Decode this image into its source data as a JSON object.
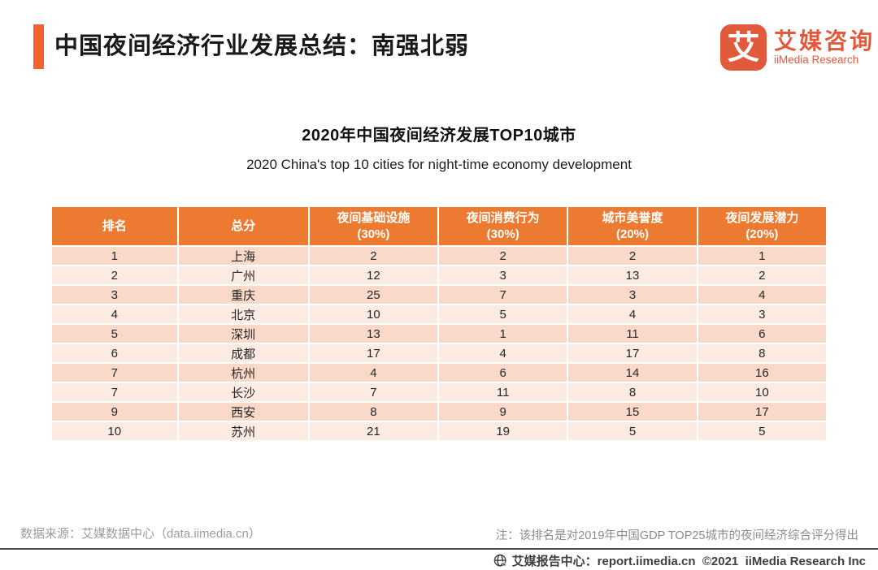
{
  "header": {
    "title": "中国夜间经济行业发展总结：南强北弱",
    "logo": {
      "glyph": "艾",
      "brand_cn": "艾媒咨询",
      "brand_en": "iiMedia Research"
    }
  },
  "chart_data": {
    "type": "table",
    "title": "2020年中国夜间经济发展TOP10城市",
    "subtitle": "2020 China's top 10 cities for night-time economy development",
    "columns": [
      "排名",
      "总分",
      "夜间基础设施\n(30%)",
      "夜间消费行为\n(30%)",
      "城市美誉度\n(20%)",
      "夜间发展潜力\n(20%)"
    ],
    "rows": [
      [
        "1",
        "上海",
        "2",
        "2",
        "2",
        "1"
      ],
      [
        "2",
        "广州",
        "12",
        "3",
        "13",
        "2"
      ],
      [
        "3",
        "重庆",
        "25",
        "7",
        "3",
        "4"
      ],
      [
        "4",
        "北京",
        "10",
        "5",
        "4",
        "3"
      ],
      [
        "5",
        "深圳",
        "13",
        "1",
        "11",
        "6"
      ],
      [
        "6",
        "成都",
        "17",
        "4",
        "17",
        "8"
      ],
      [
        "7",
        "杭州",
        "4",
        "6",
        "14",
        "16"
      ],
      [
        "7",
        "长沙",
        "7",
        "11",
        "8",
        "10"
      ],
      [
        "9",
        "西安",
        "8",
        "9",
        "15",
        "17"
      ],
      [
        "10",
        "苏州",
        "21",
        "19",
        "5",
        "5"
      ]
    ]
  },
  "footer": {
    "source": "数据来源：艾媒数据中心（data.iimedia.cn）",
    "note": "注：该排名是对2019年中国GDP TOP25城市的夜间经济综合评分得出",
    "bottom": "艾媒报告中心：report.iimedia.cn  ©2021  iiMedia Research Inc"
  },
  "colors": {
    "accent_orange": "#EC7B31",
    "titlebar_orange": "#F4622D",
    "logo_orange": "#E05A3B",
    "row_odd": "#F8D9CA",
    "row_even": "#FBEBE3"
  }
}
